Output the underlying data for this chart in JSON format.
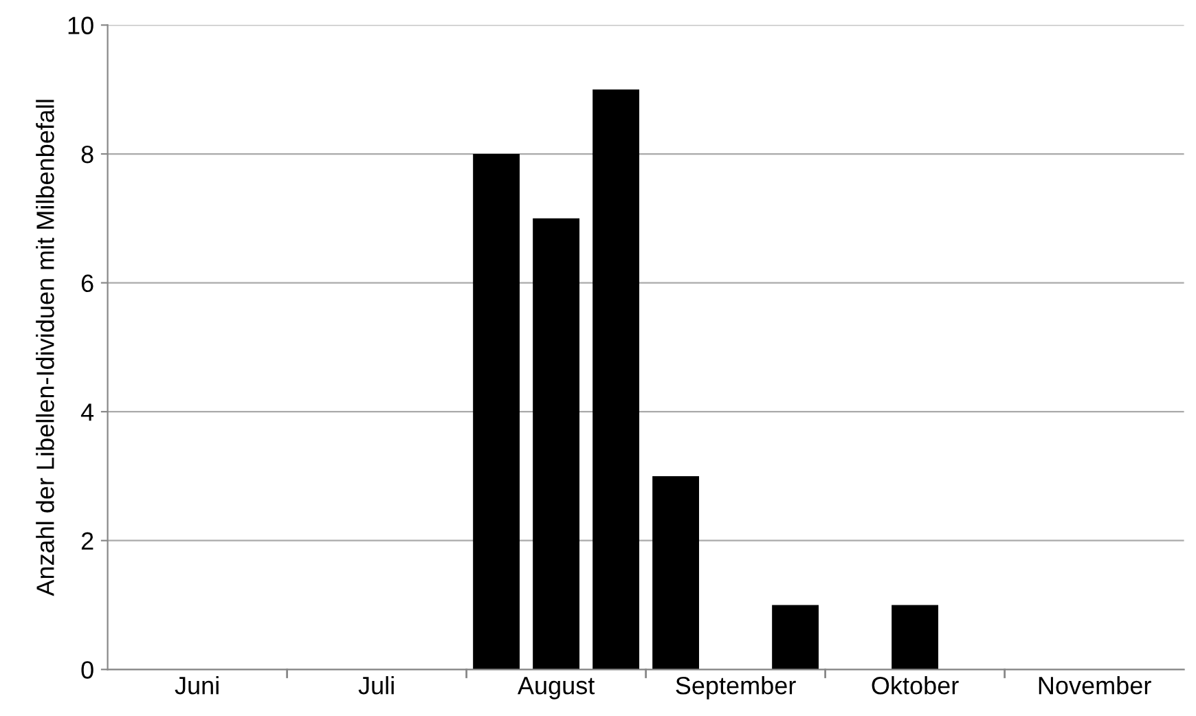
{
  "chart_data": {
    "type": "bar",
    "ylabel": "Anzahl der Libellen-Idividuen mit Milbenbefall",
    "categories": [
      null,
      "Juni",
      null,
      null,
      "Juli",
      null,
      null,
      "August",
      null,
      null,
      "September",
      null,
      null,
      "Oktober",
      null,
      null,
      "November",
      null
    ],
    "values": [
      0,
      0,
      0,
      0,
      0,
      0,
      8,
      7,
      9,
      3,
      0,
      1,
      0,
      1,
      0,
      0,
      0,
      0
    ],
    "color": "#000000",
    "ylim": [
      0,
      10
    ],
    "yticks": [
      0,
      2,
      4,
      6,
      8,
      10
    ],
    "grid": "y"
  }
}
